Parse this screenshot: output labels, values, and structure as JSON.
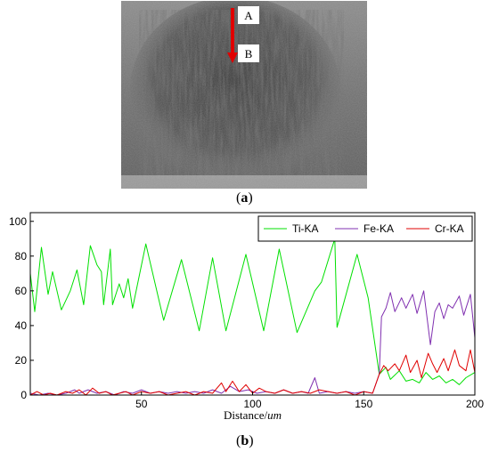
{
  "panels": {
    "a_label": "a",
    "b_label": "b"
  },
  "micrograph": {
    "marker_a": "A",
    "marker_b": "B",
    "arrow_color": "#e00000"
  },
  "chart_data": {
    "type": "line",
    "xlabel": "Distance/",
    "xlabel_unit": "um",
    "ylabel": "",
    "xlim": [
      0,
      200
    ],
    "ylim": [
      0,
      105
    ],
    "x_ticks": [
      50,
      100,
      150,
      200
    ],
    "y_ticks": [
      0,
      20,
      40,
      60,
      80,
      100
    ],
    "legend_position": "top-right",
    "series": [
      {
        "name": "Ti-KA",
        "color": "#00e000",
        "points": [
          [
            0,
            70
          ],
          [
            2,
            48
          ],
          [
            5,
            85
          ],
          [
            8,
            58
          ],
          [
            10,
            71
          ],
          [
            14,
            49
          ],
          [
            18,
            60
          ],
          [
            21,
            72
          ],
          [
            24,
            52
          ],
          [
            27,
            86
          ],
          [
            30,
            75
          ],
          [
            32,
            71
          ],
          [
            33,
            52
          ],
          [
            36,
            84
          ],
          [
            37,
            52
          ],
          [
            40,
            64
          ],
          [
            42,
            56
          ],
          [
            44,
            67
          ],
          [
            46,
            50
          ],
          [
            52,
            87
          ],
          [
            60,
            43
          ],
          [
            68,
            78
          ],
          [
            76,
            37
          ],
          [
            82,
            79
          ],
          [
            88,
            37
          ],
          [
            97,
            81
          ],
          [
            105,
            37
          ],
          [
            112,
            84
          ],
          [
            120,
            36
          ],
          [
            128,
            60
          ],
          [
            131,
            65
          ],
          [
            137,
            90
          ],
          [
            138,
            39
          ],
          [
            147,
            81
          ],
          [
            152,
            56
          ],
          [
            157,
            12
          ],
          [
            160,
            16
          ],
          [
            162,
            9
          ],
          [
            166,
            14
          ],
          [
            169,
            8
          ],
          [
            172,
            9
          ],
          [
            175,
            7
          ],
          [
            178,
            13
          ],
          [
            181,
            9
          ],
          [
            184,
            11
          ],
          [
            187,
            7
          ],
          [
            190,
            9
          ],
          [
            193,
            6
          ],
          [
            196,
            10
          ],
          [
            200,
            13
          ]
        ]
      },
      {
        "name": "Fe-KA",
        "color": "#8030b0",
        "points": [
          [
            0,
            1
          ],
          [
            4,
            0
          ],
          [
            8,
            1
          ],
          [
            12,
            0
          ],
          [
            16,
            1
          ],
          [
            20,
            3
          ],
          [
            22,
            1
          ],
          [
            26,
            3
          ],
          [
            30,
            1
          ],
          [
            34,
            2
          ],
          [
            38,
            0
          ],
          [
            42,
            2
          ],
          [
            46,
            1
          ],
          [
            50,
            3
          ],
          [
            54,
            1
          ],
          [
            58,
            2
          ],
          [
            62,
            1
          ],
          [
            66,
            2
          ],
          [
            70,
            1
          ],
          [
            74,
            2
          ],
          [
            78,
            1
          ],
          [
            82,
            3
          ],
          [
            86,
            1
          ],
          [
            90,
            5
          ],
          [
            94,
            2
          ],
          [
            98,
            3
          ],
          [
            102,
            1
          ],
          [
            106,
            2
          ],
          [
            110,
            1
          ],
          [
            114,
            3
          ],
          [
            118,
            1
          ],
          [
            122,
            2
          ],
          [
            125,
            1
          ],
          [
            128,
            10
          ],
          [
            130,
            1
          ],
          [
            134,
            2
          ],
          [
            138,
            1
          ],
          [
            142,
            2
          ],
          [
            146,
            1
          ],
          [
            150,
            2
          ],
          [
            154,
            1
          ],
          [
            157,
            12
          ],
          [
            158,
            45
          ],
          [
            160,
            50
          ],
          [
            162,
            59
          ],
          [
            164,
            48
          ],
          [
            167,
            56
          ],
          [
            169,
            50
          ],
          [
            172,
            58
          ],
          [
            174,
            47
          ],
          [
            177,
            60
          ],
          [
            180,
            29
          ],
          [
            182,
            48
          ],
          [
            184,
            53
          ],
          [
            186,
            44
          ],
          [
            188,
            52
          ],
          [
            190,
            50
          ],
          [
            193,
            57
          ],
          [
            195,
            46
          ],
          [
            198,
            58
          ],
          [
            200,
            33
          ]
        ]
      },
      {
        "name": "Cr-KA",
        "color": "#e00000",
        "points": [
          [
            0,
            0
          ],
          [
            3,
            2
          ],
          [
            6,
            0
          ],
          [
            9,
            1
          ],
          [
            12,
            0
          ],
          [
            16,
            2
          ],
          [
            19,
            1
          ],
          [
            22,
            3
          ],
          [
            25,
            0
          ],
          [
            28,
            4
          ],
          [
            31,
            1
          ],
          [
            34,
            2
          ],
          [
            37,
            0
          ],
          [
            40,
            1
          ],
          [
            43,
            2
          ],
          [
            46,
            0
          ],
          [
            50,
            2
          ],
          [
            54,
            1
          ],
          [
            58,
            2
          ],
          [
            62,
            0
          ],
          [
            66,
            1
          ],
          [
            70,
            2
          ],
          [
            74,
            0
          ],
          [
            78,
            2
          ],
          [
            82,
            1
          ],
          [
            86,
            7
          ],
          [
            88,
            2
          ],
          [
            91,
            8
          ],
          [
            94,
            2
          ],
          [
            97,
            6
          ],
          [
            100,
            1
          ],
          [
            103,
            4
          ],
          [
            106,
            2
          ],
          [
            110,
            1
          ],
          [
            114,
            3
          ],
          [
            118,
            1
          ],
          [
            122,
            2
          ],
          [
            126,
            1
          ],
          [
            130,
            3
          ],
          [
            134,
            2
          ],
          [
            138,
            1
          ],
          [
            142,
            2
          ],
          [
            146,
            0
          ],
          [
            150,
            2
          ],
          [
            154,
            1
          ],
          [
            157,
            12
          ],
          [
            159,
            17
          ],
          [
            161,
            14
          ],
          [
            164,
            18
          ],
          [
            166,
            14
          ],
          [
            169,
            23
          ],
          [
            171,
            13
          ],
          [
            174,
            20
          ],
          [
            176,
            10
          ],
          [
            179,
            24
          ],
          [
            181,
            18
          ],
          [
            183,
            13
          ],
          [
            186,
            21
          ],
          [
            188,
            14
          ],
          [
            191,
            26
          ],
          [
            193,
            17
          ],
          [
            196,
            14
          ],
          [
            198,
            26
          ],
          [
            200,
            13
          ]
        ]
      }
    ]
  }
}
